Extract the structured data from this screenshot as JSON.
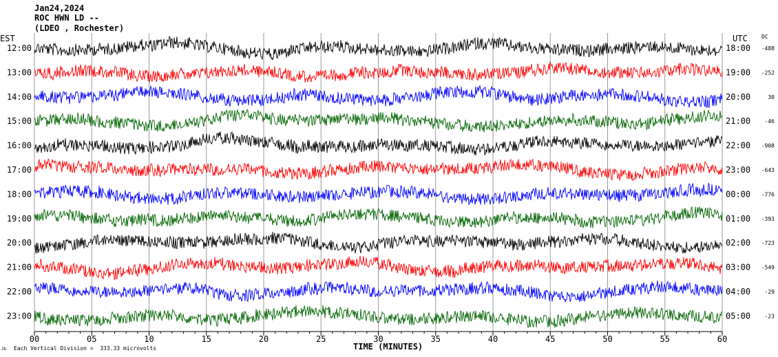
{
  "header": {
    "date": "Jan24,2024",
    "station": "ROC HWN LD --",
    "network": "(LDEO , Rochester)"
  },
  "left_axis_label": "EST",
  "right_axis_label": "UTC",
  "dc_label": "DC",
  "footer": {
    "note": "Each Vertical Division =  333.33 microvolts",
    "logo": "Jk"
  },
  "chart_data": {
    "type": "line",
    "title": "",
    "xlabel": "TIME (MINUTES)",
    "ylabel": "",
    "xlim": [
      0,
      60
    ],
    "x_ticks": [
      "00",
      "05",
      "10",
      "15",
      "20",
      "25",
      "30",
      "35",
      "40",
      "45",
      "50",
      "55",
      "60"
    ],
    "x_tick_values": [
      0,
      5,
      10,
      15,
      20,
      25,
      30,
      35,
      40,
      45,
      50,
      55,
      60
    ],
    "grid": true,
    "trace_colors": [
      "#000000",
      "#ff0000",
      "#0000ff",
      "#006400"
    ],
    "rows": [
      {
        "est": "12:00",
        "utc": "18:00",
        "dc": "-488",
        "color": "#000000"
      },
      {
        "est": "13:00",
        "utc": "19:00",
        "dc": "-252",
        "color": "#ff0000"
      },
      {
        "est": "14:00",
        "utc": "20:00",
        "dc": "30",
        "color": "#0000ff"
      },
      {
        "est": "15:00",
        "utc": "21:00",
        "dc": "-46",
        "color": "#006400"
      },
      {
        "est": "16:00",
        "utc": "22:00",
        "dc": "-908",
        "color": "#000000"
      },
      {
        "est": "17:00",
        "utc": "23:00",
        "dc": "-643",
        "color": "#ff0000"
      },
      {
        "est": "18:00",
        "utc": "00:00",
        "dc": "-776",
        "color": "#0000ff"
      },
      {
        "est": "19:00",
        "utc": "01:00",
        "dc": "-393",
        "color": "#006400"
      },
      {
        "est": "20:00",
        "utc": "02:00",
        "dc": "-723",
        "color": "#000000"
      },
      {
        "est": "21:00",
        "utc": "03:00",
        "dc": "-549",
        "color": "#ff0000"
      },
      {
        "est": "22:00",
        "utc": "04:00",
        "dc": "-29",
        "color": "#0000ff"
      },
      {
        "est": "23:00",
        "utc": "05:00",
        "dc": "-23",
        "color": "#006400"
      }
    ]
  }
}
